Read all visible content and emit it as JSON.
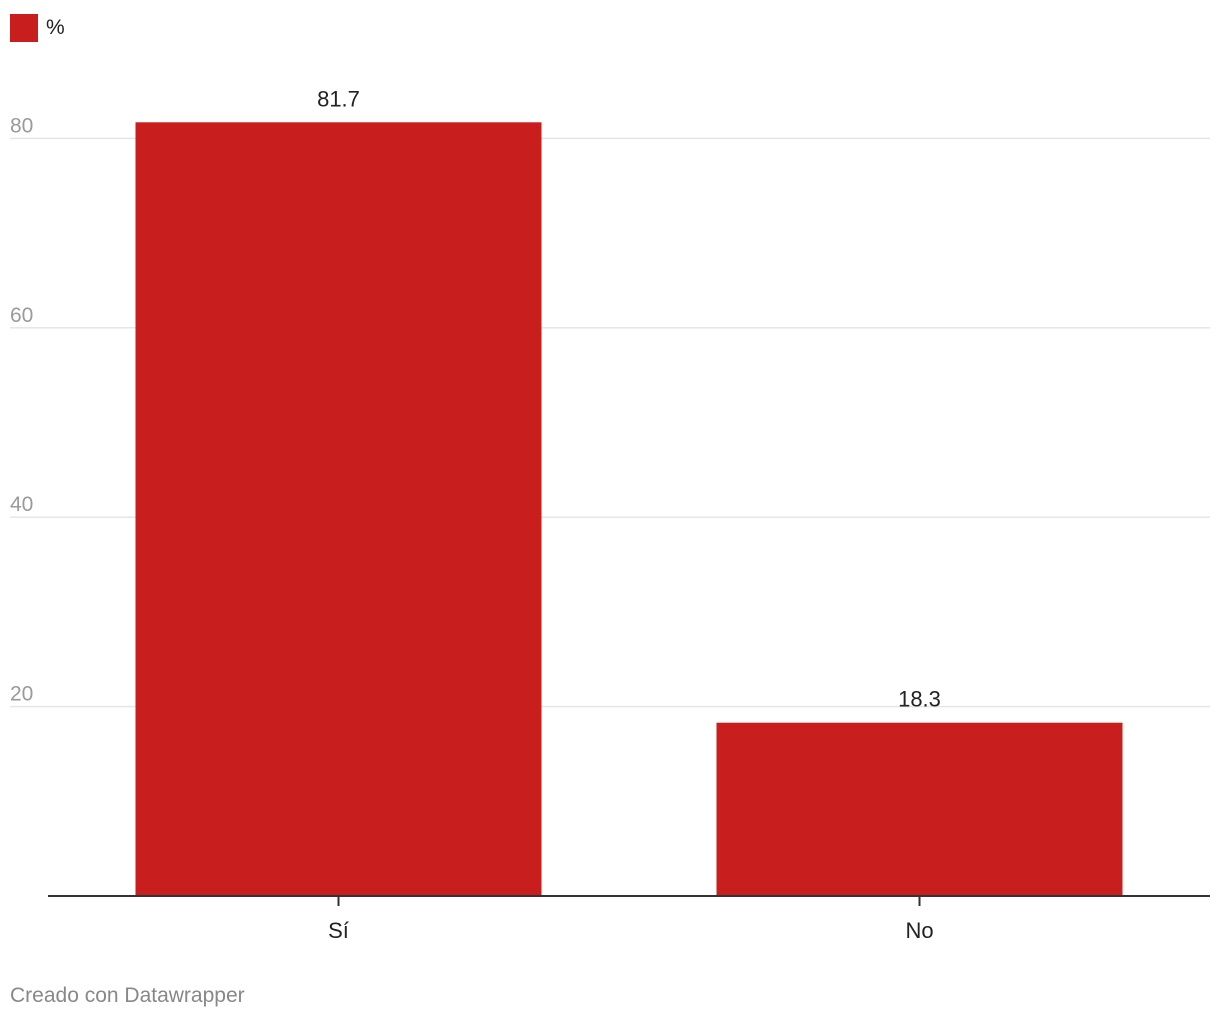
{
  "colors": {
    "bar": "#c81e1e",
    "grid": "#e6e6e6",
    "axis": "#333333",
    "tick_label": "#9a9a9a",
    "text": "#222222",
    "footer": "#888888"
  },
  "legend": {
    "label": "%"
  },
  "footer": {
    "credit": "Creado con Datawrapper"
  },
  "chart_data": {
    "type": "bar",
    "categories": [
      "Sí",
      "No"
    ],
    "series": [
      {
        "name": "%",
        "values": [
          81.7,
          18.3
        ]
      }
    ],
    "data_labels": [
      "81.7",
      "18.3"
    ],
    "yticks": [
      20,
      40,
      60,
      80
    ],
    "ylim": [
      0,
      90
    ],
    "grid": true,
    "legend_position": "top-left",
    "title": "",
    "xlabel": "",
    "ylabel": ""
  }
}
